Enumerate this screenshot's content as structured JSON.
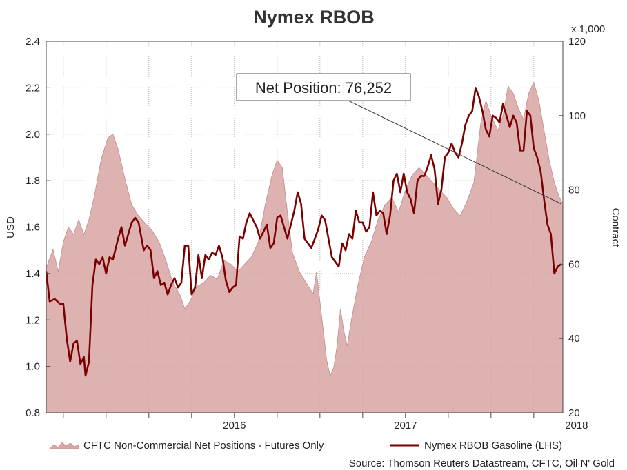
{
  "chart_data": {
    "type": "line",
    "title": "Nymex RBOB",
    "ylabel_left": "USD",
    "ylabel_right": "Contract",
    "right_axis_multiplier": "x 1,000",
    "ylim_left": [
      0.8,
      2.4
    ],
    "yticks_left": [
      "0.8",
      "1.0",
      "1.2",
      "1.4",
      "1.6",
      "1.8",
      "2.0",
      "2.2",
      "2.4"
    ],
    "ylim_right": [
      20,
      120
    ],
    "yticks_right": [
      "20",
      "40",
      "60",
      "80",
      "100",
      "120"
    ],
    "xlim": [
      2015.4,
      2018.42
    ],
    "xticks": [
      {
        "label": "2016",
        "value": 2016.0
      },
      {
        "label": "2017",
        "value": 2017.0
      },
      {
        "label": "2018",
        "value": 2018.0
      }
    ],
    "grid": true,
    "annotation": {
      "text": "Net Position: 76,252",
      "target_x": 2018.41,
      "target_y": 76.252
    },
    "legend": [
      "CFTC Non-Commercial Net Positions - Futures Only",
      "Nymex RBOB Gasoline (LHS)"
    ],
    "source": "Source: Thomson Reuters Datastream, CFTC, Oil N' Gold",
    "series": [
      {
        "name": "CFTC Non-Commercial Net Positions - Futures Only",
        "kind": "area",
        "axis": "right",
        "color": "#d9a5a5",
        "points": [
          [
            2015.4,
            59
          ],
          [
            2015.44,
            64
          ],
          [
            2015.47,
            58
          ],
          [
            2015.5,
            66
          ],
          [
            2015.53,
            70
          ],
          [
            2015.56,
            68
          ],
          [
            2015.59,
            72
          ],
          [
            2015.62,
            68
          ],
          [
            2015.65,
            72
          ],
          [
            2015.68,
            78
          ],
          [
            2015.72,
            88
          ],
          [
            2015.76,
            94
          ],
          [
            2015.79,
            95
          ],
          [
            2015.82,
            91
          ],
          [
            2015.86,
            83
          ],
          [
            2015.9,
            76
          ],
          [
            2015.94,
            73
          ],
          [
            2015.98,
            71
          ],
          [
            2016.02,
            69
          ],
          [
            2016.06,
            66
          ],
          [
            2016.1,
            61
          ],
          [
            2016.14,
            55
          ],
          [
            2016.18,
            52
          ],
          [
            2016.21,
            48
          ],
          [
            2016.24,
            50
          ],
          [
            2016.28,
            54
          ],
          [
            2016.32,
            55
          ],
          [
            2016.36,
            57
          ],
          [
            2016.4,
            56
          ],
          [
            2016.44,
            61
          ],
          [
            2016.48,
            60
          ],
          [
            2016.52,
            58
          ],
          [
            2016.56,
            60
          ],
          [
            2016.6,
            62
          ],
          [
            2016.64,
            66
          ],
          [
            2016.68,
            76
          ],
          [
            2016.72,
            84
          ],
          [
            2016.75,
            88
          ],
          [
            2016.78,
            86
          ],
          [
            2016.81,
            74
          ],
          [
            2016.84,
            63
          ],
          [
            2016.88,
            58
          ],
          [
            2016.92,
            55
          ],
          [
            2016.96,
            52
          ],
          [
            2016.98,
            58
          ],
          [
            2017.0,
            50
          ],
          [
            2017.02,
            42
          ],
          [
            2017.04,
            34
          ],
          [
            2017.06,
            30
          ],
          [
            2017.08,
            32
          ],
          [
            2017.1,
            38
          ],
          [
            2017.12,
            48
          ],
          [
            2017.14,
            42
          ],
          [
            2017.16,
            38
          ],
          [
            2017.18,
            44
          ],
          [
            2017.22,
            54
          ],
          [
            2017.26,
            62
          ],
          [
            2017.3,
            66
          ],
          [
            2017.34,
            72
          ],
          [
            2017.38,
            76
          ],
          [
            2017.42,
            78
          ],
          [
            2017.46,
            74
          ],
          [
            2017.5,
            80
          ],
          [
            2017.54,
            84
          ],
          [
            2017.58,
            86
          ],
          [
            2017.62,
            84
          ],
          [
            2017.66,
            82
          ],
          [
            2017.7,
            80
          ],
          [
            2017.74,
            78
          ],
          [
            2017.78,
            75
          ],
          [
            2017.82,
            73
          ],
          [
            2017.86,
            77
          ],
          [
            2017.9,
            82
          ],
          [
            2017.94,
            98
          ],
          [
            2017.97,
            104
          ],
          [
            2018.0,
            100
          ],
          [
            2018.04,
            96
          ],
          [
            2018.07,
            100
          ],
          [
            2018.1,
            108
          ],
          [
            2018.13,
            106
          ],
          [
            2018.16,
            102
          ],
          [
            2018.19,
            99
          ],
          [
            2018.22,
            106
          ],
          [
            2018.25,
            109
          ],
          [
            2018.28,
            104
          ],
          [
            2018.31,
            96
          ],
          [
            2018.34,
            88
          ],
          [
            2018.37,
            82
          ],
          [
            2018.4,
            78
          ],
          [
            2018.42,
            76.252
          ]
        ]
      },
      {
        "name": "Nymex RBOB Gasoline (LHS)",
        "kind": "line",
        "axis": "left",
        "color": "#7a0000",
        "points": [
          [
            2015.4,
            1.41
          ],
          [
            2015.42,
            1.28
          ],
          [
            2015.45,
            1.29
          ],
          [
            2015.48,
            1.27
          ],
          [
            2015.5,
            1.27
          ],
          [
            2015.52,
            1.12
          ],
          [
            2015.54,
            1.02
          ],
          [
            2015.56,
            1.1
          ],
          [
            2015.58,
            1.11
          ],
          [
            2015.6,
            1.01
          ],
          [
            2015.62,
            1.04
          ],
          [
            2015.63,
            0.96
          ],
          [
            2015.65,
            1.02
          ],
          [
            2015.67,
            1.35
          ],
          [
            2015.69,
            1.46
          ],
          [
            2015.71,
            1.44
          ],
          [
            2015.73,
            1.47
          ],
          [
            2015.75,
            1.4
          ],
          [
            2015.77,
            1.47
          ],
          [
            2015.79,
            1.46
          ],
          [
            2015.82,
            1.55
          ],
          [
            2015.84,
            1.6
          ],
          [
            2015.86,
            1.52
          ],
          [
            2015.88,
            1.57
          ],
          [
            2015.9,
            1.62
          ],
          [
            2015.92,
            1.64
          ],
          [
            2015.94,
            1.62
          ],
          [
            2015.97,
            1.5
          ],
          [
            2015.99,
            1.52
          ],
          [
            2016.01,
            1.5
          ],
          [
            2016.03,
            1.38
          ],
          [
            2016.05,
            1.41
          ],
          [
            2016.07,
            1.35
          ],
          [
            2016.09,
            1.36
          ],
          [
            2016.11,
            1.31
          ],
          [
            2016.13,
            1.35
          ],
          [
            2016.15,
            1.38
          ],
          [
            2016.17,
            1.34
          ],
          [
            2016.19,
            1.36
          ],
          [
            2016.21,
            1.52
          ],
          [
            2016.23,
            1.52
          ],
          [
            2016.25,
            1.31
          ],
          [
            2016.27,
            1.34
          ],
          [
            2016.29,
            1.48
          ],
          [
            2016.31,
            1.38
          ],
          [
            2016.33,
            1.48
          ],
          [
            2016.35,
            1.46
          ],
          [
            2016.37,
            1.49
          ],
          [
            2016.39,
            1.48
          ],
          [
            2016.41,
            1.52
          ],
          [
            2016.43,
            1.47
          ],
          [
            2016.45,
            1.37
          ],
          [
            2016.47,
            1.32
          ],
          [
            2016.49,
            1.34
          ],
          [
            2016.51,
            1.35
          ],
          [
            2016.53,
            1.56
          ],
          [
            2016.55,
            1.55
          ],
          [
            2016.57,
            1.62
          ],
          [
            2016.59,
            1.66
          ],
          [
            2016.61,
            1.63
          ],
          [
            2016.63,
            1.6
          ],
          [
            2016.65,
            1.55
          ],
          [
            2016.67,
            1.58
          ],
          [
            2016.69,
            1.61
          ],
          [
            2016.71,
            1.51
          ],
          [
            2016.73,
            1.53
          ],
          [
            2016.75,
            1.64
          ],
          [
            2016.77,
            1.65
          ],
          [
            2016.79,
            1.6
          ],
          [
            2016.81,
            1.55
          ],
          [
            2016.83,
            1.61
          ],
          [
            2016.85,
            1.67
          ],
          [
            2016.87,
            1.75
          ],
          [
            2016.89,
            1.7
          ],
          [
            2016.91,
            1.55
          ],
          [
            2016.93,
            1.53
          ],
          [
            2016.95,
            1.51
          ],
          [
            2016.97,
            1.55
          ],
          [
            2016.99,
            1.59
          ],
          [
            2017.01,
            1.65
          ],
          [
            2017.03,
            1.63
          ],
          [
            2017.05,
            1.55
          ],
          [
            2017.07,
            1.47
          ],
          [
            2017.09,
            1.45
          ],
          [
            2017.11,
            1.43
          ],
          [
            2017.13,
            1.53
          ],
          [
            2017.15,
            1.5
          ],
          [
            2017.17,
            1.57
          ],
          [
            2017.19,
            1.55
          ],
          [
            2017.21,
            1.67
          ],
          [
            2017.23,
            1.62
          ],
          [
            2017.25,
            1.62
          ],
          [
            2017.27,
            1.58
          ],
          [
            2017.29,
            1.6
          ],
          [
            2017.31,
            1.75
          ],
          [
            2017.33,
            1.65
          ],
          [
            2017.35,
            1.67
          ],
          [
            2017.37,
            1.66
          ],
          [
            2017.39,
            1.57
          ],
          [
            2017.41,
            1.65
          ],
          [
            2017.43,
            1.8
          ],
          [
            2017.45,
            1.83
          ],
          [
            2017.47,
            1.75
          ],
          [
            2017.49,
            1.83
          ],
          [
            2017.51,
            1.75
          ],
          [
            2017.53,
            1.72
          ],
          [
            2017.55,
            1.66
          ],
          [
            2017.57,
            1.8
          ],
          [
            2017.59,
            1.82
          ],
          [
            2017.61,
            1.82
          ],
          [
            2017.63,
            1.86
          ],
          [
            2017.65,
            1.91
          ],
          [
            2017.67,
            1.85
          ],
          [
            2017.69,
            1.7
          ],
          [
            2017.71,
            1.76
          ],
          [
            2017.73,
            1.9
          ],
          [
            2017.75,
            1.92
          ],
          [
            2017.77,
            1.96
          ],
          [
            2017.79,
            1.92
          ],
          [
            2017.81,
            1.9
          ],
          [
            2017.83,
            1.96
          ],
          [
            2017.85,
            2.04
          ],
          [
            2017.87,
            2.08
          ],
          [
            2017.89,
            2.1
          ],
          [
            2017.91,
            2.2
          ],
          [
            2017.93,
            2.16
          ],
          [
            2017.95,
            2.1
          ],
          [
            2017.97,
            2.02
          ],
          [
            2017.99,
            1.99
          ],
          [
            2018.01,
            2.08
          ],
          [
            2018.03,
            2.07
          ],
          [
            2018.05,
            2.05
          ],
          [
            2018.07,
            2.13
          ],
          [
            2018.09,
            2.08
          ],
          [
            2018.11,
            2.03
          ],
          [
            2018.13,
            2.08
          ],
          [
            2018.15,
            2.05
          ],
          [
            2018.17,
            1.93
          ],
          [
            2018.19,
            1.93
          ],
          [
            2018.21,
            2.1
          ],
          [
            2018.23,
            2.08
          ],
          [
            2018.25,
            1.94
          ],
          [
            2018.27,
            1.9
          ],
          [
            2018.29,
            1.84
          ],
          [
            2018.31,
            1.72
          ],
          [
            2018.33,
            1.61
          ],
          [
            2018.35,
            1.57
          ],
          [
            2018.37,
            1.4
          ],
          [
            2018.39,
            1.43
          ],
          [
            2018.41,
            1.44
          ]
        ]
      }
    ]
  }
}
